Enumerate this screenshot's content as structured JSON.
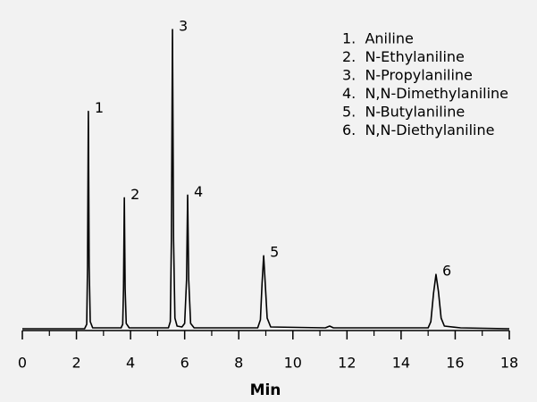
{
  "chart_data": {
    "type": "line",
    "xlabel": "Min",
    "x": [
      0,
      2.3,
      2.38,
      2.41,
      2.44,
      2.47,
      2.51,
      2.6,
      3.65,
      3.71,
      3.74,
      3.77,
      3.8,
      3.84,
      3.95,
      5.4,
      5.47,
      5.51,
      5.55,
      5.59,
      5.64,
      5.72,
      5.9,
      6.0,
      6.07,
      6.11,
      6.15,
      6.22,
      6.35,
      8.7,
      8.8,
      8.86,
      8.92,
      8.98,
      9.05,
      9.18,
      11.2,
      11.36,
      11.5,
      15.0,
      15.1,
      15.2,
      15.29,
      15.38,
      15.48,
      15.6,
      16.2,
      18
    ],
    "values": [
      0,
      0,
      5,
      70,
      244,
      70,
      8,
      1,
      1,
      5,
      45,
      147,
      45,
      6,
      1,
      1,
      8,
      100,
      336,
      100,
      12,
      3,
      2,
      6,
      55,
      150,
      55,
      6,
      1,
      1,
      10,
      50,
      82,
      50,
      12,
      2,
      1,
      3,
      1,
      1,
      8,
      40,
      61,
      42,
      12,
      3,
      1,
      0
    ],
    "color": "#000000",
    "xlim": [
      0,
      18
    ],
    "xticks": [
      0,
      2,
      4,
      6,
      8,
      10,
      12,
      14,
      16,
      18
    ],
    "xminorticks": [
      1,
      3,
      5,
      7,
      9,
      11,
      13,
      15,
      17
    ],
    "peak_labels": [
      {
        "text": "1",
        "x": 2.44,
        "y": 244
      },
      {
        "text": "2",
        "x": 3.77,
        "y": 147
      },
      {
        "text": "3",
        "x": 5.55,
        "y": 336
      },
      {
        "text": "4",
        "x": 6.11,
        "y": 150
      },
      {
        "text": "5",
        "x": 8.92,
        "y": 82
      },
      {
        "text": "6",
        "x": 15.29,
        "y": 61
      }
    ],
    "legend": [
      "1.  Aniline",
      "2.  N-Ethylaniline",
      "3.  N-Propylaniline",
      "4.  N,N-Dimethylaniline",
      "5.  N-Butylaniline",
      "6.  N,N-Diethylaniline"
    ]
  }
}
